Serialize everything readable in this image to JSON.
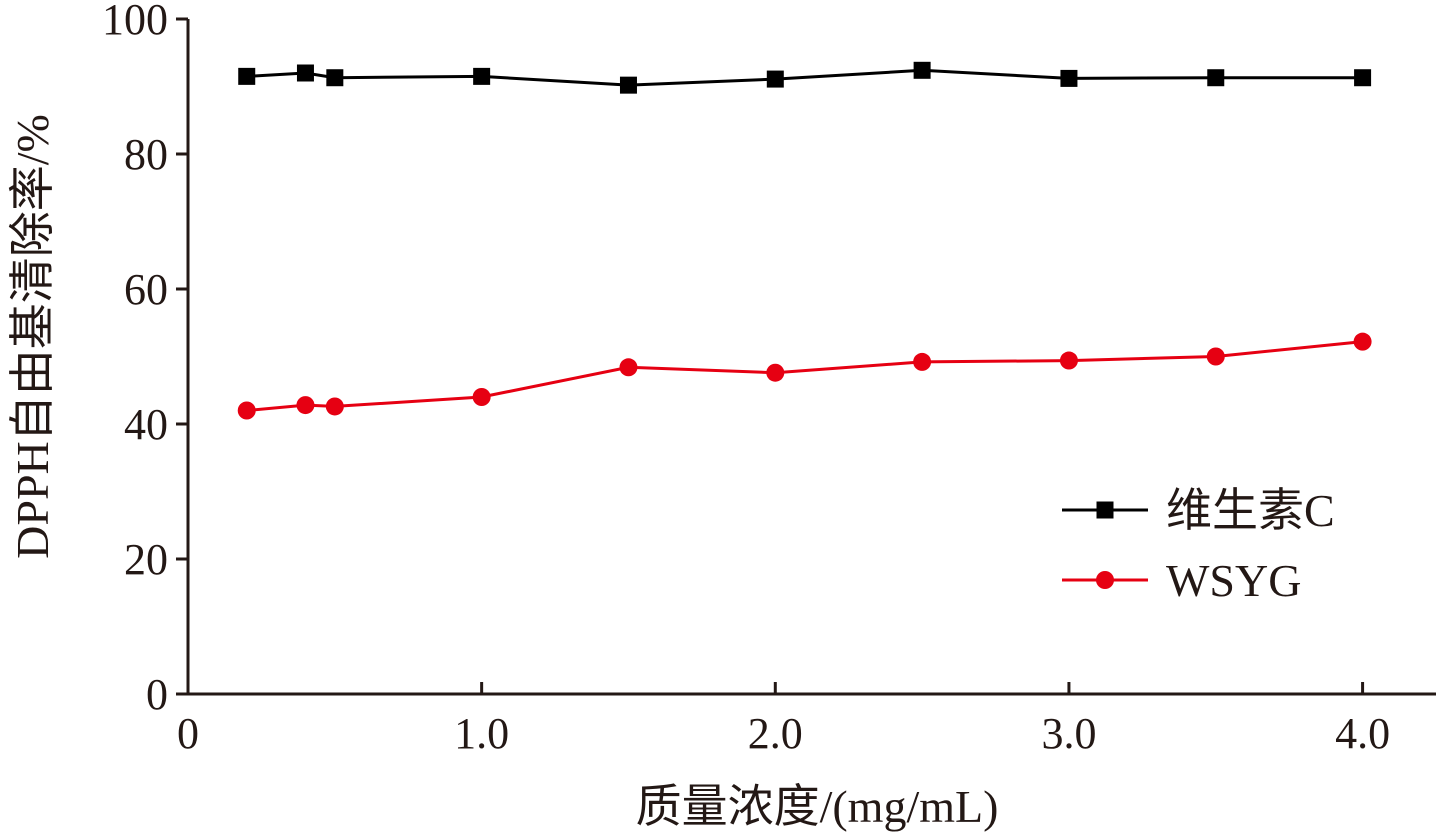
{
  "chart_data": {
    "type": "line",
    "xlabel": "质量浓度/(mg/mL)",
    "ylabel": "DPPH自由基清除率/%",
    "xlim": [
      0,
      4.25
    ],
    "ylim": [
      0,
      100
    ],
    "x_ticks": [
      0,
      1.0,
      2.0,
      3.0,
      4.0
    ],
    "x_tick_labels": [
      "0",
      "1.0",
      "2.0",
      "3.0",
      "4.0"
    ],
    "y_ticks": [
      0,
      20,
      40,
      60,
      80,
      100
    ],
    "y_tick_labels": [
      "0",
      "20",
      "40",
      "60",
      "80",
      "100"
    ],
    "grid": false,
    "legend_position": "center-right",
    "x": [
      0.2,
      0.4,
      0.5,
      1.0,
      1.5,
      2.0,
      2.5,
      3.0,
      3.5,
      4.0
    ],
    "series": [
      {
        "name": "维生素C",
        "marker": "square",
        "color": "#000000",
        "values": [
          91.5,
          92.0,
          91.3,
          91.5,
          90.2,
          91.1,
          92.4,
          91.2,
          91.3,
          91.3
        ]
      },
      {
        "name": "WSYG",
        "marker": "circle",
        "color": "#e60012",
        "values": [
          42.0,
          42.8,
          42.6,
          44.0,
          48.4,
          47.6,
          49.2,
          49.4,
          50.0,
          52.2
        ]
      }
    ]
  }
}
